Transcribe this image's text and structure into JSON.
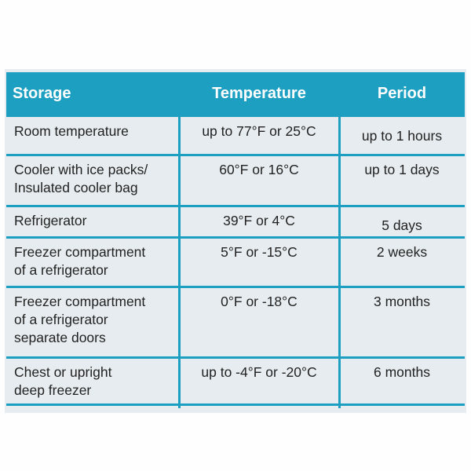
{
  "table": {
    "header": [
      "Storage",
      "Temperature",
      "Period"
    ],
    "rows": [
      [
        [
          "Room temperature"
        ],
        "up to 77°F or 25°C",
        "up to 1 hours"
      ],
      [
        [
          "Cooler with ice packs/",
          "Insulated cooler bag"
        ],
        "60°F or 16°C",
        "up to 1 days"
      ],
      [
        [
          "Refrigerator"
        ],
        "39°F or 4°C",
        "5 days"
      ],
      [
        [
          "Freezer compartment",
          "of a refrigerator"
        ],
        "5°F or -15°C",
        "2 weeks"
      ],
      [
        [
          "Freezer compartment",
          "of a refrigerator",
          "separate doors"
        ],
        "0°F or -18°C",
        "3 months"
      ],
      [
        [
          "Chest or upright",
          "deep freezer"
        ],
        "up to -4°F or -20°C",
        "6 months"
      ]
    ]
  }
}
